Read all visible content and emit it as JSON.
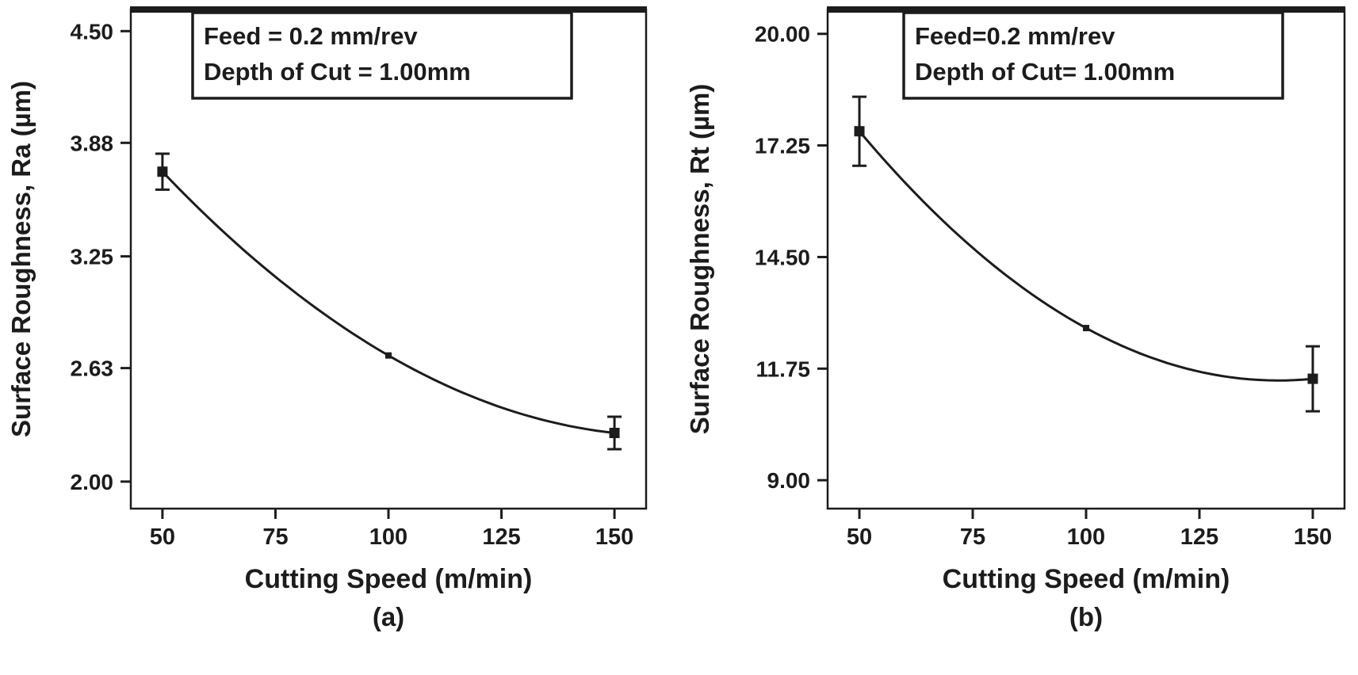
{
  "page": {
    "background": "#ffffff",
    "ink_color": "#1c1c1c"
  },
  "chart_data": [
    {
      "id": "a",
      "type": "line",
      "panel_label": "(a)",
      "xlabel": "Cutting Speed (m/min)",
      "ylabel": "Surface Roughness, Ra (µm)",
      "annotation_lines": [
        "Feed = 0.2 mm/rev",
        "Depth of Cut = 1.00mm"
      ],
      "x": [
        50,
        100,
        150
      ],
      "y": [
        3.72,
        2.7,
        2.27
      ],
      "yerr": [
        0.1,
        0.0,
        0.09
      ],
      "xticks": [
        50,
        75,
        100,
        125,
        150
      ],
      "xtick_labels": [
        "50",
        "75",
        "100",
        "125",
        "150"
      ],
      "yticks": [
        4.5,
        3.88,
        3.25,
        2.63,
        2.0
      ],
      "ytick_labels": [
        "4.50",
        "3.88",
        "3.25",
        "2.63",
        "2.00"
      ],
      "xlim": [
        43,
        157
      ],
      "ylim": [
        1.85,
        4.62
      ],
      "grid": false,
      "legend": "none",
      "line_color": "#1c1c1c"
    },
    {
      "id": "b",
      "type": "line",
      "panel_label": "(b)",
      "xlabel": "Cutting Speed (m/min)",
      "ylabel": "Surface Roughness, Rt (µm)",
      "annotation_lines": [
        "Feed=0.2 mm/rev",
        "Depth of Cut= 1.00mm"
      ],
      "x": [
        50,
        100,
        150
      ],
      "y": [
        17.6,
        12.75,
        11.5
      ],
      "yerr": [
        0.85,
        0.0,
        0.8
      ],
      "xticks": [
        50,
        75,
        100,
        125,
        150
      ],
      "xtick_labels": [
        "50",
        "75",
        "100",
        "125",
        "150"
      ],
      "yticks": [
        20.0,
        17.25,
        14.5,
        11.75,
        9.0
      ],
      "ytick_labels": [
        "20.00",
        "17.25",
        "14.50",
        "11.75",
        "9.00"
      ],
      "xlim": [
        43,
        157
      ],
      "ylim": [
        8.3,
        20.6
      ],
      "grid": false,
      "legend": "none",
      "line_color": "#1c1c1c"
    }
  ]
}
